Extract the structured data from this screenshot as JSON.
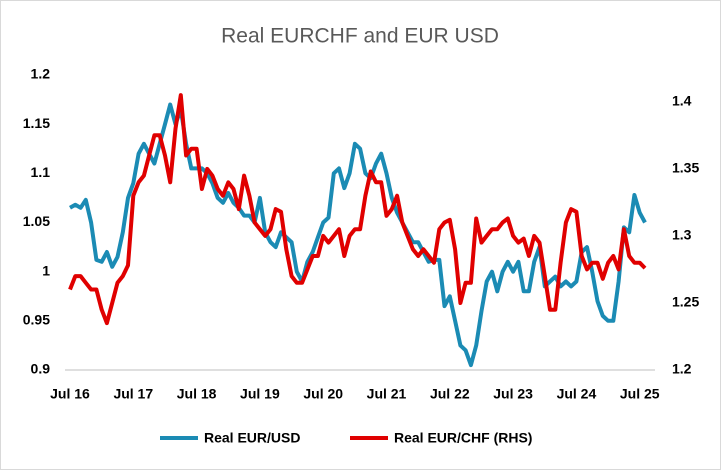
{
  "chart_data": {
    "type": "line",
    "title": "Real EURCHF and EUR USD",
    "categories": [
      "Jul 16",
      null,
      null,
      null,
      null,
      null,
      null,
      null,
      null,
      null,
      null,
      null,
      "Jul 17",
      null,
      null,
      null,
      null,
      null,
      null,
      null,
      null,
      null,
      null,
      null,
      "Jul 18",
      null,
      null,
      null,
      null,
      null,
      null,
      null,
      null,
      null,
      null,
      null,
      "Jul 19",
      null,
      null,
      null,
      null,
      null,
      null,
      null,
      null,
      null,
      null,
      null,
      "Jul 20",
      null,
      null,
      null,
      null,
      null,
      null,
      null,
      null,
      null,
      null,
      null,
      "Jul 21",
      null,
      null,
      null,
      null,
      null,
      null,
      null,
      null,
      null,
      null,
      null,
      "Jul 22",
      null,
      null,
      null,
      null,
      null,
      null,
      null,
      null,
      null,
      null,
      null,
      "Jul 23",
      null,
      null,
      null,
      null,
      null,
      null,
      null,
      null,
      null,
      null,
      null,
      "Jul 24",
      null,
      null,
      null,
      null,
      null,
      null,
      null,
      null,
      null,
      null,
      null,
      "Jul 25",
      null
    ],
    "series": [
      {
        "name": "Real EUR/USD",
        "color": "#1b8bb4",
        "values": [
          1.065,
          1.068,
          1.065,
          1.073,
          1.05,
          1.012,
          1.01,
          1.02,
          1.005,
          1.015,
          1.04,
          1.075,
          1.09,
          1.12,
          1.13,
          1.12,
          1.11,
          1.13,
          1.15,
          1.17,
          1.15,
          1.165,
          1.13,
          1.105,
          1.105,
          1.105,
          1.1,
          1.09,
          1.075,
          1.07,
          1.08,
          1.07,
          1.065,
          1.057,
          1.057,
          1.05,
          1.075,
          1.04,
          1.03,
          1.025,
          1.04,
          1.035,
          1.03,
          1.0,
          0.99,
          1.01,
          1.02,
          1.035,
          1.05,
          1.055,
          1.1,
          1.105,
          1.085,
          1.1,
          1.13,
          1.125,
          1.1,
          1.095,
          1.11,
          1.12,
          1.1,
          1.075,
          1.06,
          1.05,
          1.04,
          1.03,
          1.03,
          1.02,
          1.01,
          1.012,
          1.012,
          0.965,
          0.975,
          0.95,
          0.925,
          0.92,
          0.905,
          0.925,
          0.96,
          0.99,
          1.0,
          0.98,
          1.0,
          1.01,
          1.0,
          1.01,
          0.98,
          0.98,
          1.01,
          1.025,
          0.985,
          0.99,
          0.995,
          0.985,
          0.99,
          0.985,
          0.99,
          1.02,
          1.025,
          1.0,
          0.97,
          0.955,
          0.95,
          0.95,
          0.99,
          1.045,
          1.04,
          1.078,
          1.06,
          1.05
        ]
      },
      {
        "name": "Real EUR/CHF (RHS)",
        "color": "#e00000",
        "axis": "y2",
        "values": [
          1.26,
          1.27,
          1.27,
          1.265,
          1.26,
          1.26,
          1.245,
          1.235,
          1.25,
          1.265,
          1.27,
          1.278,
          1.33,
          1.34,
          1.345,
          1.36,
          1.375,
          1.375,
          1.36,
          1.34,
          1.38,
          1.405,
          1.36,
          1.365,
          1.365,
          1.335,
          1.35,
          1.345,
          1.335,
          1.33,
          1.34,
          1.335,
          1.32,
          1.345,
          1.33,
          1.31,
          1.305,
          1.3,
          1.305,
          1.32,
          1.318,
          1.29,
          1.27,
          1.265,
          1.265,
          1.275,
          1.285,
          1.285,
          1.3,
          1.295,
          1.3,
          1.305,
          1.285,
          1.3,
          1.305,
          1.305,
          1.33,
          1.348,
          1.34,
          1.34,
          1.315,
          1.32,
          1.33,
          1.31,
          1.3,
          1.29,
          1.285,
          1.29,
          1.285,
          1.28,
          1.305,
          1.31,
          1.312,
          1.29,
          1.25,
          1.265,
          1.265,
          1.313,
          1.295,
          1.3,
          1.305,
          1.305,
          1.31,
          1.313,
          1.3,
          1.295,
          1.298,
          1.285,
          1.3,
          1.295,
          1.27,
          1.245,
          1.245,
          1.28,
          1.31,
          1.32,
          1.318,
          1.285,
          1.275,
          1.28,
          1.28,
          1.268,
          1.28,
          1.285,
          1.275,
          1.305,
          1.285,
          1.28,
          1.28,
          1.276
        ]
      }
    ],
    "ylim": [
      0.9,
      1.2
    ],
    "yticks": [
      0.9,
      0.95,
      1,
      1.05,
      1.1,
      1.15,
      1.2
    ],
    "y2lim": [
      1.2,
      1.42
    ],
    "y2ticks": [
      1.2,
      1.25,
      1.3,
      1.35,
      1.4
    ],
    "grid": false,
    "legend": "bottom"
  }
}
